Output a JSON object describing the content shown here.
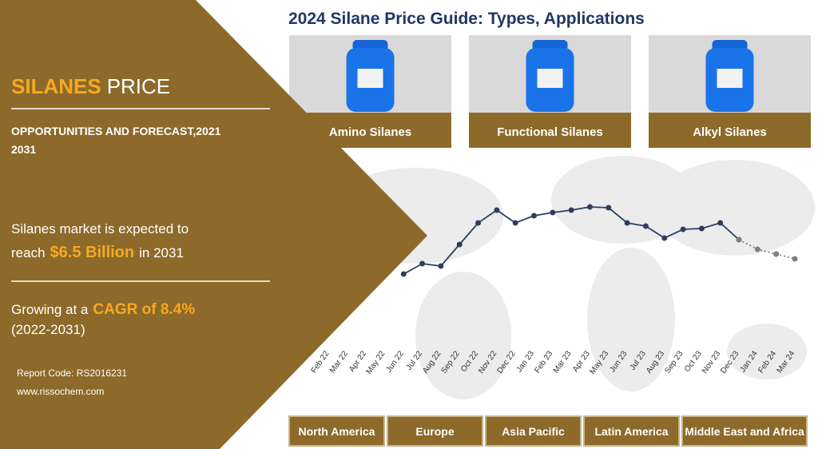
{
  "header": {
    "title": "2024 Silane Price Guide: Types, Applications"
  },
  "panel": {
    "title_highlight": "SILANES",
    "title_rest": "PRICE",
    "subtitle_line1": "OPPORTUNITIES AND FORECAST,2021",
    "subtitle_line2": "2031",
    "market_line1": "Silanes market is expected to",
    "market_pre": "reach",
    "market_value": "$6.5 Billion",
    "market_post": "in 2031",
    "growth_pre": "Growing at a",
    "growth_value": "CAGR of 8.4%",
    "growth_period": "(2022-2031)",
    "report_code": "Report Code: RS2016231",
    "website": "www.rissochem.com"
  },
  "products": [
    "Amino Silanes",
    "Functional Silanes",
    "Alkyl Silanes"
  ],
  "regions": [
    "North America",
    "Europe",
    "Asia Pacific",
    "Latin America",
    "Middle East and Africa"
  ],
  "chart_data": {
    "type": "line",
    "categories": [
      "Feb 22",
      "Mar 22",
      "Apr 22",
      "May 22",
      "Jun 22",
      "Jul 22",
      "Aug 22",
      "Sep 22",
      "Oct 22",
      "Nov 22",
      "Dec 22",
      "Jan 23",
      "Feb 23",
      "Mar 23",
      "Apr 23",
      "May 23",
      "Jun 23",
      "Jul 23",
      "Aug 23",
      "Sep 23",
      "Oct 23",
      "Nov 23",
      "Dec 23",
      "Jan 24",
      "Feb 24",
      "Mar 24"
    ],
    "series": [
      {
        "color": "#2f3e5c",
        "values": [
          null,
          null,
          null,
          null,
          17,
          30,
          27,
          54,
          81,
          97,
          81,
          90,
          94,
          97,
          101,
          100,
          81,
          77,
          62,
          73,
          74,
          81,
          60,
          null,
          null,
          null
        ]
      },
      {
        "color": "#7a7f88",
        "dashed": true,
        "values": [
          null,
          null,
          null,
          null,
          null,
          null,
          null,
          null,
          null,
          null,
          null,
          null,
          null,
          null,
          null,
          null,
          null,
          null,
          null,
          null,
          null,
          null,
          60,
          48,
          42,
          36
        ]
      }
    ],
    "ylim": [
      0,
      120
    ]
  }
}
